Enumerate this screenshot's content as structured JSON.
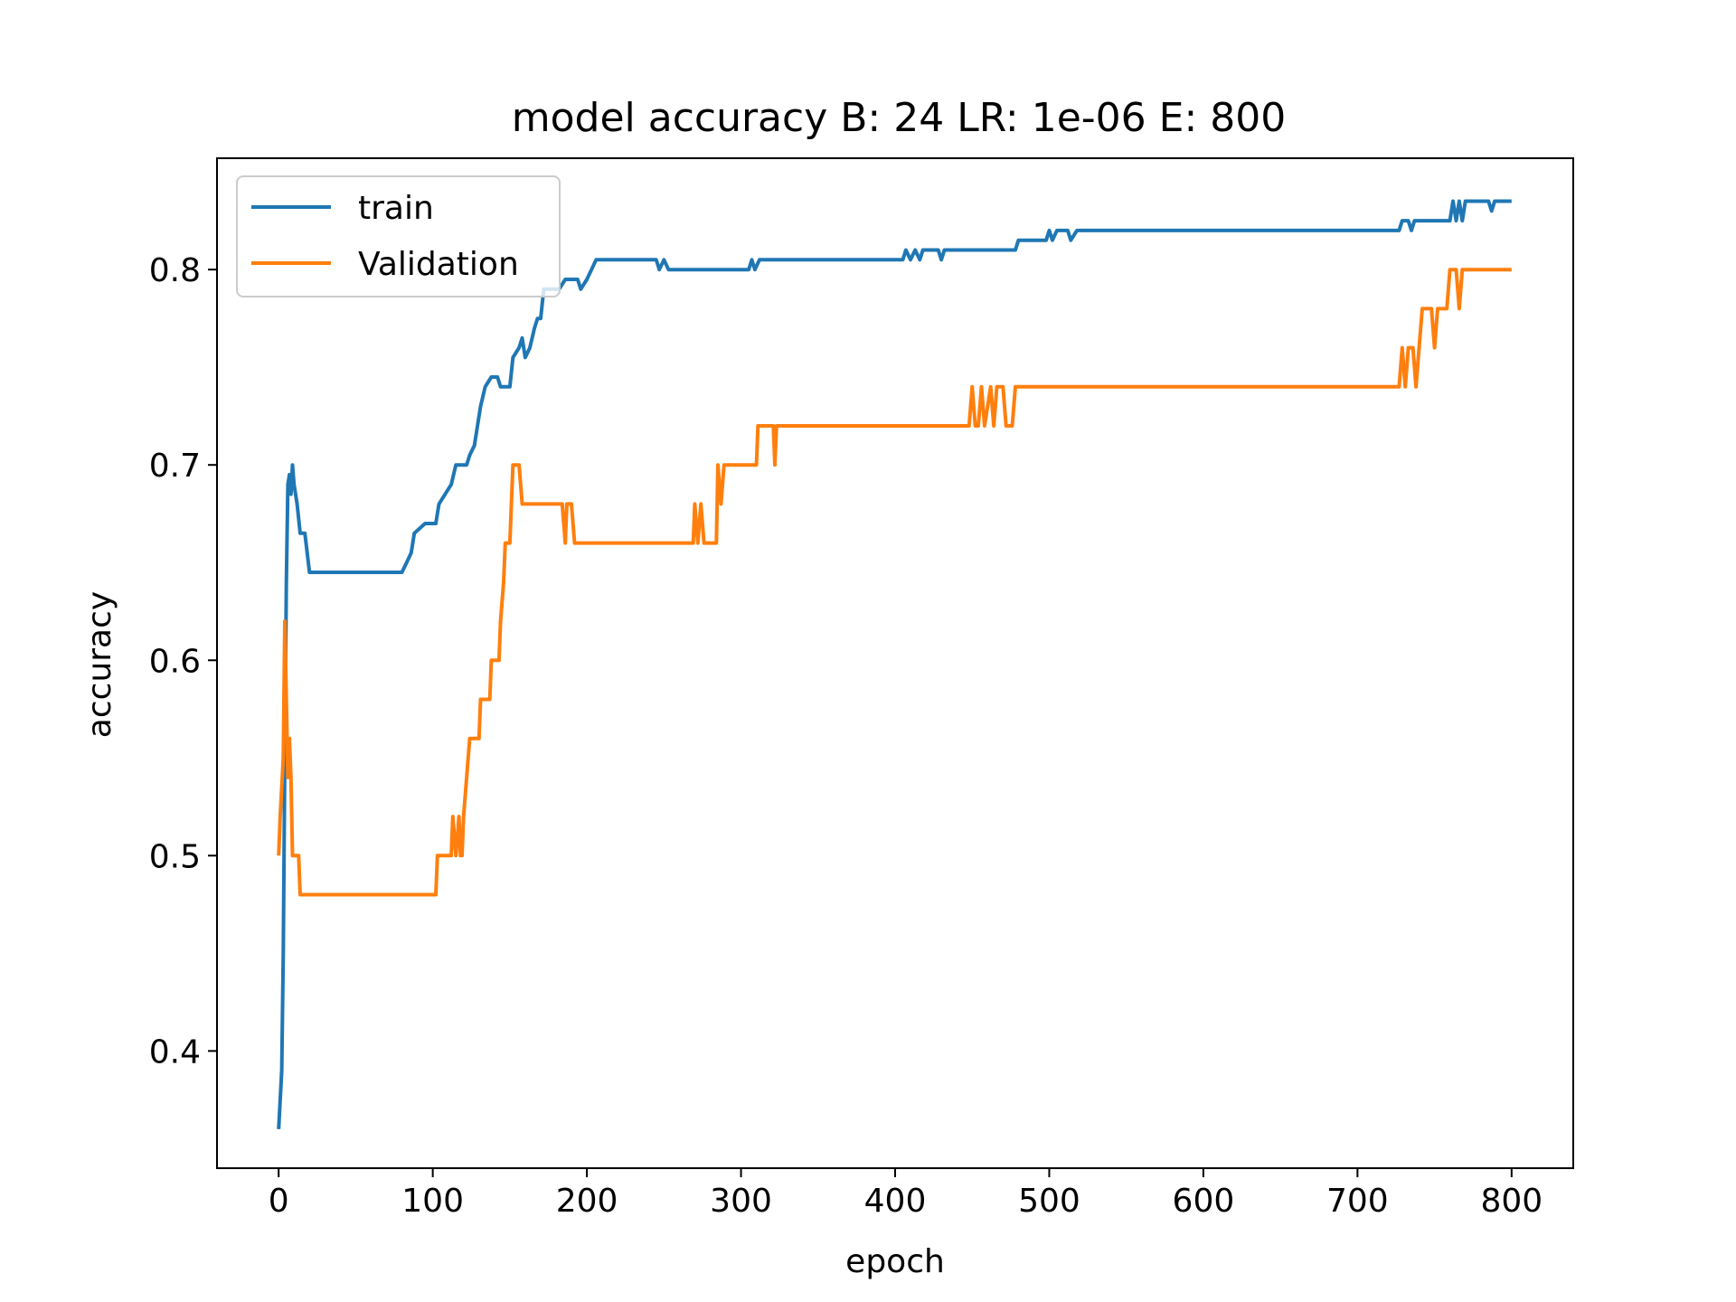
{
  "chart_data": {
    "type": "line",
    "title": "model accuracy B: 24 LR: 1e-06 E: 800",
    "xlabel": "epoch",
    "ylabel": "accuracy",
    "xlim": [
      -40,
      840
    ],
    "ylim": [
      0.34,
      0.857
    ],
    "xticks": [
      0,
      100,
      200,
      300,
      400,
      500,
      600,
      700,
      800
    ],
    "yticks": [
      0.4,
      0.5,
      0.6,
      0.7,
      0.8
    ],
    "xtick_labels": [
      "0",
      "100",
      "200",
      "300",
      "400",
      "500",
      "600",
      "700",
      "800"
    ],
    "ytick_labels": [
      "0.4",
      "0.5",
      "0.6",
      "0.7",
      "0.8"
    ],
    "grid": false,
    "legend": {
      "placement": "top-left",
      "entries": [
        "train",
        "Validation"
      ]
    },
    "series": [
      {
        "name": "train",
        "color": "#1f77b4",
        "points": [
          [
            0,
            0.36
          ],
          [
            2,
            0.39
          ],
          [
            3,
            0.45
          ],
          [
            4,
            0.55
          ],
          [
            5,
            0.64
          ],
          [
            6,
            0.69
          ],
          [
            7,
            0.695
          ],
          [
            8,
            0.685
          ],
          [
            9,
            0.7
          ],
          [
            10,
            0.69
          ],
          [
            12,
            0.68
          ],
          [
            14,
            0.665
          ],
          [
            17,
            0.665
          ],
          [
            20,
            0.645
          ],
          [
            80,
            0.645
          ],
          [
            83,
            0.65
          ],
          [
            86,
            0.655
          ],
          [
            88,
            0.665
          ],
          [
            95,
            0.67
          ],
          [
            102,
            0.67
          ],
          [
            104,
            0.68
          ],
          [
            108,
            0.685
          ],
          [
            112,
            0.69
          ],
          [
            115,
            0.7
          ],
          [
            122,
            0.7
          ],
          [
            124,
            0.705
          ],
          [
            127,
            0.71
          ],
          [
            129,
            0.72
          ],
          [
            131,
            0.73
          ],
          [
            134,
            0.74
          ],
          [
            138,
            0.745
          ],
          [
            142,
            0.745
          ],
          [
            144,
            0.74
          ],
          [
            150,
            0.74
          ],
          [
            152,
            0.755
          ],
          [
            156,
            0.76
          ],
          [
            158,
            0.765
          ],
          [
            160,
            0.755
          ],
          [
            163,
            0.76
          ],
          [
            166,
            0.77
          ],
          [
            168,
            0.775
          ],
          [
            170,
            0.775
          ],
          [
            172,
            0.79
          ],
          [
            182,
            0.79
          ],
          [
            186,
            0.795
          ],
          [
            194,
            0.795
          ],
          [
            196,
            0.79
          ],
          [
            200,
            0.795
          ],
          [
            203,
            0.8
          ],
          [
            206,
            0.805
          ],
          [
            245,
            0.805
          ],
          [
            247,
            0.8
          ],
          [
            250,
            0.805
          ],
          [
            253,
            0.8
          ],
          [
            305,
            0.8
          ],
          [
            307,
            0.805
          ],
          [
            309,
            0.8
          ],
          [
            312,
            0.805
          ],
          [
            405,
            0.805
          ],
          [
            407,
            0.81
          ],
          [
            410,
            0.805
          ],
          [
            413,
            0.81
          ],
          [
            416,
            0.805
          ],
          [
            418,
            0.81
          ],
          [
            428,
            0.81
          ],
          [
            430,
            0.805
          ],
          [
            432,
            0.81
          ],
          [
            478,
            0.81
          ],
          [
            480,
            0.815
          ],
          [
            498,
            0.815
          ],
          [
            500,
            0.82
          ],
          [
            502,
            0.815
          ],
          [
            505,
            0.82
          ],
          [
            512,
            0.82
          ],
          [
            514,
            0.815
          ],
          [
            518,
            0.82
          ],
          [
            727,
            0.82
          ],
          [
            729,
            0.825
          ],
          [
            733,
            0.825
          ],
          [
            735,
            0.82
          ],
          [
            737,
            0.825
          ],
          [
            760,
            0.825
          ],
          [
            762,
            0.835
          ],
          [
            764,
            0.825
          ],
          [
            766,
            0.835
          ],
          [
            768,
            0.825
          ],
          [
            770,
            0.835
          ],
          [
            785,
            0.835
          ],
          [
            787,
            0.83
          ],
          [
            789,
            0.835
          ],
          [
            800,
            0.835
          ]
        ]
      },
      {
        "name": "Validation",
        "color": "#ff7f0e",
        "points": [
          [
            0,
            0.5
          ],
          [
            1,
            0.52
          ],
          [
            3,
            0.55
          ],
          [
            4,
            0.62
          ],
          [
            5,
            0.58
          ],
          [
            6,
            0.54
          ],
          [
            7,
            0.56
          ],
          [
            8,
            0.54
          ],
          [
            9,
            0.5
          ],
          [
            13,
            0.5
          ],
          [
            14,
            0.48
          ],
          [
            102,
            0.48
          ],
          [
            103,
            0.5
          ],
          [
            112,
            0.5
          ],
          [
            113,
            0.52
          ],
          [
            115,
            0.5
          ],
          [
            117,
            0.52
          ],
          [
            118,
            0.5
          ],
          [
            119,
            0.5
          ],
          [
            120,
            0.52
          ],
          [
            122,
            0.54
          ],
          [
            124,
            0.56
          ],
          [
            130,
            0.56
          ],
          [
            131,
            0.58
          ],
          [
            137,
            0.58
          ],
          [
            138,
            0.6
          ],
          [
            143,
            0.6
          ],
          [
            144,
            0.62
          ],
          [
            146,
            0.64
          ],
          [
            147,
            0.66
          ],
          [
            150,
            0.66
          ],
          [
            151,
            0.68
          ],
          [
            152,
            0.7
          ],
          [
            156,
            0.7
          ],
          [
            158,
            0.68
          ],
          [
            184,
            0.68
          ],
          [
            186,
            0.66
          ],
          [
            187,
            0.68
          ],
          [
            190,
            0.68
          ],
          [
            192,
            0.66
          ],
          [
            269,
            0.66
          ],
          [
            270,
            0.68
          ],
          [
            272,
            0.66
          ],
          [
            274,
            0.68
          ],
          [
            276,
            0.66
          ],
          [
            284,
            0.66
          ],
          [
            285,
            0.7
          ],
          [
            287,
            0.68
          ],
          [
            289,
            0.7
          ],
          [
            310,
            0.7
          ],
          [
            311,
            0.72
          ],
          [
            321,
            0.72
          ],
          [
            322,
            0.7
          ],
          [
            323,
            0.72
          ],
          [
            448,
            0.72
          ],
          [
            450,
            0.74
          ],
          [
            452,
            0.72
          ],
          [
            454,
            0.72
          ],
          [
            456,
            0.74
          ],
          [
            458,
            0.72
          ],
          [
            462,
            0.74
          ],
          [
            464,
            0.72
          ],
          [
            466,
            0.74
          ],
          [
            470,
            0.74
          ],
          [
            472,
            0.72
          ],
          [
            476,
            0.72
          ],
          [
            478,
            0.74
          ],
          [
            727,
            0.74
          ],
          [
            729,
            0.76
          ],
          [
            731,
            0.74
          ],
          [
            733,
            0.76
          ],
          [
            736,
            0.76
          ],
          [
            738,
            0.74
          ],
          [
            740,
            0.76
          ],
          [
            742,
            0.78
          ],
          [
            748,
            0.78
          ],
          [
            750,
            0.76
          ],
          [
            752,
            0.78
          ],
          [
            758,
            0.78
          ],
          [
            760,
            0.8
          ],
          [
            764,
            0.8
          ],
          [
            766,
            0.78
          ],
          [
            768,
            0.8
          ],
          [
            800,
            0.8
          ]
        ]
      }
    ]
  }
}
